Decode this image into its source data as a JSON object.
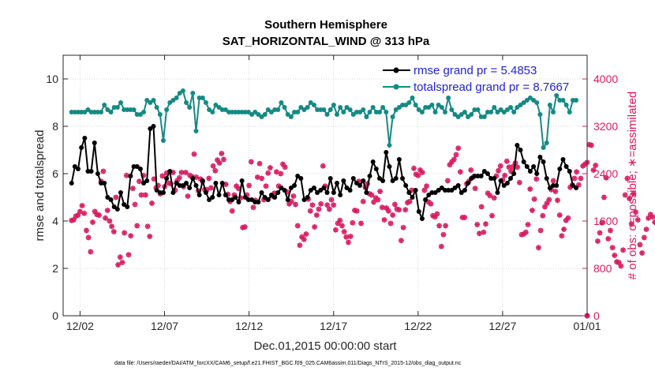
{
  "chart_data": {
    "type": "line",
    "title_line1": "Southern Hemisphere",
    "title_line2": "SAT_HORIZONTAL_WIND @ 313 hPa",
    "xlabel": "Dec.01,2015 00:00:00 start",
    "ylabel": "rmse and totalspread",
    "ylabel_right": "# of obs: o=possible; ∗=assimilated",
    "xlim": [
      0.5,
      31.5
    ],
    "ylim": [
      0,
      11
    ],
    "ylim_right": [
      0,
      4400
    ],
    "x_ticks": [
      1.5,
      6.5,
      11.5,
      16.5,
      21.5,
      26.5,
      31.5
    ],
    "x_tick_labels": [
      "12/02",
      "12/07",
      "12/12",
      "12/17",
      "12/22",
      "12/27",
      "01/01"
    ],
    "y_ticks": [
      0,
      2,
      4,
      6,
      8,
      10
    ],
    "y_tick_labels": [
      "0",
      "2",
      "4",
      "6",
      "8",
      "10"
    ],
    "y_ticks_right": [
      0,
      800,
      1600,
      2400,
      3200,
      4000
    ],
    "y_tick_labels_right": [
      "0",
      "800",
      "1600",
      "2400",
      "3200",
      "4000"
    ],
    "footer": "data file: /Users/raeder/DAI/ATM_forcXX/CAM6_setup/f.e21.FHIST_BGC.f09_025.CAM6assim.011/Diags_NTrS_2015-12/obs_diag_output.nc",
    "series": [
      {
        "name": "rmse grand pr = 5.4853",
        "color": "#000000",
        "values": [
          5.6,
          6.3,
          6.2,
          7.1,
          7.5,
          6.1,
          6.1,
          7.3,
          6.0,
          5.6,
          5.6,
          5.0,
          4.9,
          4.6,
          4.5,
          5.2,
          4.7,
          4.6,
          5.9,
          6.3,
          6.3,
          6.2,
          5.6,
          5.7,
          7.9,
          8.0,
          5.3,
          5.2,
          5.2,
          5.8,
          6.1,
          5.2,
          5.6,
          5.5,
          5.5,
          5.6,
          5.4,
          5.8,
          5.5,
          5.1,
          5.7,
          5.2,
          4.9,
          5.0,
          5.6,
          5.1,
          5.6,
          5.1,
          4.9,
          4.9,
          5.0,
          4.8,
          5.7,
          5.0,
          4.9,
          4.9,
          4.8,
          4.8,
          5.2,
          5.0,
          4.9,
          5.1,
          5.0,
          5.2,
          5.4,
          5.3,
          4.9,
          5.4,
          5.5,
          5.9,
          5.8,
          4.9,
          5.0,
          5.3,
          5.4,
          5.2,
          5.3,
          5.4,
          5.2,
          5.8,
          5.2,
          5.6,
          5.1,
          5.7,
          5.4,
          5.3,
          5.8,
          5.6,
          5.5,
          5.7,
          5.2,
          5.9,
          6.5,
          6.2,
          5.8,
          5.7,
          6.9,
          6.3,
          5.7,
          5.8,
          6.6,
          5.8,
          5.5,
          5.2,
          5.0,
          5.3,
          4.4,
          4.1,
          4.9,
          5.1,
          5.2,
          5.2,
          5.3,
          5.4,
          5.3,
          5.3,
          5.3,
          5.4,
          5.5,
          5.2,
          5.3,
          5.6,
          5.8,
          5.9,
          5.9,
          5.9,
          6.1,
          6.0,
          5.8,
          5.8,
          5.2,
          5.7,
          5.5,
          5.6,
          5.8,
          6.0,
          7.2,
          7.0,
          6.5,
          6.3,
          6.1,
          6.3,
          6.0,
          6.7,
          6.5,
          5.8,
          5.4,
          5.5,
          5.5,
          6.2,
          6.6,
          6.3,
          6.1,
          5.5,
          5.4
        ]
      },
      {
        "name": "totalspread grand pr = 8.7667",
        "color": "#148a84",
        "values": [
          8.6,
          8.6,
          8.6,
          8.6,
          8.6,
          8.7,
          8.6,
          8.6,
          8.6,
          8.6,
          8.9,
          8.7,
          8.6,
          8.8,
          8.8,
          9.0,
          8.7,
          8.7,
          8.7,
          8.7,
          8.5,
          8.5,
          8.6,
          9.1,
          9.0,
          9.1,
          8.8,
          8.5,
          7.4,
          8.7,
          9.0,
          9.1,
          9.2,
          9.4,
          9.5,
          9.0,
          8.8,
          9.4,
          7.8,
          9.2,
          9.2,
          9.0,
          8.7,
          8.6,
          8.9,
          8.8,
          8.7,
          8.7,
          8.6,
          8.6,
          8.6,
          8.6,
          8.6,
          8.6,
          8.6,
          8.5,
          8.6,
          8.5,
          8.4,
          8.5,
          8.7,
          8.6,
          8.7,
          8.7,
          9.0,
          8.8,
          8.5,
          8.4,
          8.6,
          8.6,
          8.8,
          8.7,
          8.8,
          9.0,
          8.9,
          8.7,
          8.7,
          8.7,
          8.5,
          8.7,
          8.9,
          8.5,
          8.8,
          8.6,
          8.8,
          8.7,
          8.5,
          8.6,
          8.6,
          8.7,
          8.4,
          8.6,
          8.8,
          8.6,
          8.6,
          8.8,
          8.6,
          7.2,
          8.4,
          8.7,
          8.8,
          8.9,
          8.9,
          9.0,
          9.2,
          8.9,
          8.7,
          8.6,
          8.8,
          8.8,
          8.9,
          8.6,
          8.9,
          8.8,
          8.6,
          9.2,
          8.7,
          8.5,
          8.4,
          8.5,
          8.6,
          8.4,
          8.5,
          8.7,
          8.7,
          8.4,
          8.4,
          8.6,
          8.6,
          8.8,
          8.6,
          8.7,
          8.6,
          8.7,
          8.8,
          8.6,
          8.8,
          8.9,
          9.0,
          9.1,
          9.2,
          9.1,
          9.0,
          8.5,
          7.1,
          7.3,
          8.9,
          8.6,
          9.3,
          9.1,
          9.1,
          8.9,
          8.6,
          9.1,
          9.1
        ]
      }
    ],
    "obs_possible": [
      1610,
      1620,
      1680,
      1700,
      1760,
      1860,
      1730,
      1440,
      1320,
      1080,
      1580,
      1760,
      1710,
      1700,
      2270,
      2440,
      1650,
      1780,
      1600,
      1510,
      1420,
      2000,
      860,
      990,
      900,
      1400,
      2370,
      1030,
      1350,
      2150,
      1880,
      1520,
      2270,
      2040,
      2370,
      2040,
      1510,
      1340,
      1900,
      2310,
      2160,
      2200,
      2060,
      2360,
      2180,
      2410,
      2240,
      2230,
      2420,
      2120,
      2280,
      2330,
      2420,
      2180,
      2420,
      2020,
      2370,
      2350,
      2730,
      2340,
      2110,
      2310,
      2270,
      2130,
      2130,
      2320,
      2160,
      2530,
      2450,
      2630,
      2580,
      2740,
      2640,
      2220,
      2050,
      1930,
      1770,
      2040,
      2190,
      2150,
      1990,
      1490,
      1500,
      2040,
      2200,
      2600,
      1830,
      1950,
      2340,
      2570,
      2320,
      1960,
      2190,
      2410,
      2500,
      2020,
      2070,
      2430,
      2190,
      2400,
      2560,
      2510,
      2090,
      1890,
      1930,
      2020,
      1880,
      1520,
      1190,
      1330,
      1290,
      1380,
      1970,
      1770,
      1870,
      1500,
      1700,
      1800,
      1890,
      2530,
      2190,
      1870,
      1800,
      1960,
      1870,
      1450,
      1560,
      1610,
      1520,
      1420,
      1330,
      1240,
      1340,
      1570,
      1780,
      1770,
      2270,
      1560,
      1930,
      2170,
      2230,
      2060,
      2040,
      1920,
      1990,
      1960,
      2100,
      1830,
      1620,
      1820,
      1770,
      1560,
      1700,
      1880,
      1800,
      1790,
      1270,
      1490,
      1790,
      1910,
      1930,
      2120,
      2490,
      2390,
      2370,
      2460,
      2420,
      2120,
      2190,
      1920,
      1890,
      1690,
      1670,
      1720,
      1520,
      1170,
      1370,
      1520,
      2280,
      2550,
      2600,
      2640,
      2720,
      2830,
      2430,
      1660,
      1660,
      2230,
      2270,
      2460,
      2340,
      2150,
      1540,
      1390,
      1840,
      1410,
      1550,
      2070,
      2030,
      1690,
      1990,
      2360,
      2450,
      2530,
      2290,
      2370,
      2610,
      2510,
      2440,
      2520,
      2580,
      2510,
      2250,
      1370,
      1380,
      1410,
      1540,
      2140,
      1780,
      1970,
      2310,
      1150,
      1440,
      1690,
      1840,
      1900,
      1960,
      2130,
      2280,
      2100,
      1950,
      1700,
      1350,
      1460,
      1610,
      1650,
      2170,
      2210,
      2320,
      2430,
      2210,
      2320,
      2530,
      2560,
      2590,
      2890,
      2880,
      2460,
      2540,
      1260,
      1400,
      1570,
      2000,
      2330,
      1300,
      1440,
      1150,
      1020,
      910,
      900,
      840,
      1110,
      2040,
      2320,
      1980,
      1550,
      2060,
      1750,
      1620,
      1200,
      1060,
      1320,
      1460,
      1650,
      1710,
      1670,
      1580
    ]
  }
}
